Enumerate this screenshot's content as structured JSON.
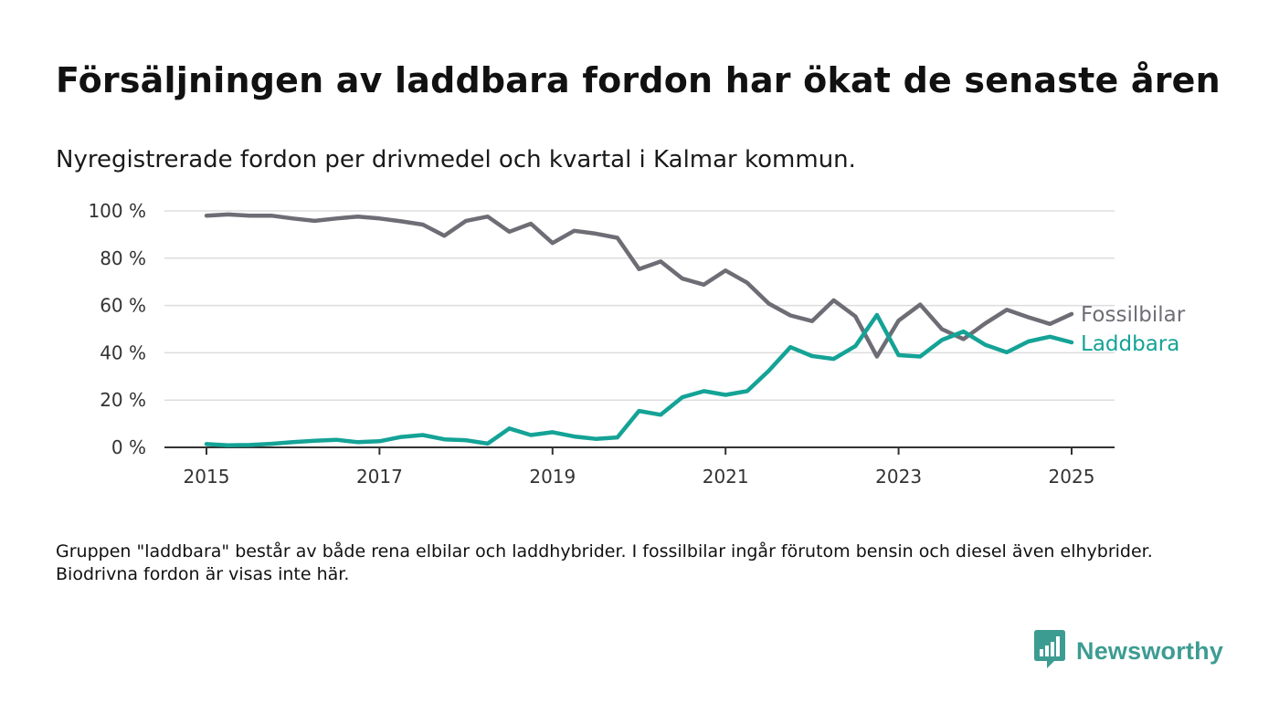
{
  "header": {
    "title": "Försäljningen av laddbara fordon har ökat de senaste åren",
    "subtitle": "Nyregistrerade fordon per drivmedel och kvartal i Kalmar kommun."
  },
  "note": "Gruppen \"laddbara\" består av både rena elbilar och laddhybrider. I fossilbilar ingår förutom bensin och diesel även elhybrider. Biodrivna fordon är visas inte här.",
  "brand": {
    "name": "Newsworthy",
    "icon": "newsworthy-chat-bar-icon",
    "color": "#3d9c92"
  },
  "colors": {
    "fossil": "#6e6d75",
    "laddbara": "#14a396",
    "grid": "#dddddd",
    "axis": "#333333"
  },
  "chart_data": {
    "type": "line",
    "title": "Försäljningen av laddbara fordon har ökat de senaste åren",
    "subtitle": "Nyregistrerade fordon per drivmedel och kvartal i Kalmar kommun.",
    "xlabel": "",
    "ylabel": "",
    "x": [
      "2015-Q1",
      "2015-Q2",
      "2015-Q3",
      "2015-Q4",
      "2016-Q1",
      "2016-Q2",
      "2016-Q3",
      "2016-Q4",
      "2017-Q1",
      "2017-Q2",
      "2017-Q3",
      "2017-Q4",
      "2018-Q1",
      "2018-Q2",
      "2018-Q3",
      "2018-Q4",
      "2019-Q1",
      "2019-Q2",
      "2019-Q3",
      "2019-Q4",
      "2020-Q1",
      "2020-Q2",
      "2020-Q3",
      "2020-Q4",
      "2021-Q1",
      "2021-Q2",
      "2021-Q3",
      "2021-Q4",
      "2022-Q1",
      "2022-Q2",
      "2022-Q3",
      "2022-Q4",
      "2023-Q1",
      "2023-Q2",
      "2023-Q3",
      "2023-Q4",
      "2024-Q1",
      "2024-Q2",
      "2024-Q3",
      "2024-Q4",
      "2025-Q1"
    ],
    "x_ticks": [
      "2015",
      "2017",
      "2019",
      "2021",
      "2023",
      "2025"
    ],
    "y_ticks": [
      0,
      20,
      40,
      60,
      80,
      100
    ],
    "y_tick_labels": [
      "0 %",
      "20 %",
      "40 %",
      "60 %",
      "80 %",
      "100 %"
    ],
    "ylim": [
      0,
      100
    ],
    "grid": true,
    "legend": "inline-right",
    "series": [
      {
        "name": "Fossilbilar",
        "color": "#6e6d75",
        "values": [
          98,
          98.5,
          98,
          98,
          96.8,
          95.8,
          96.8,
          97.6,
          96.8,
          95.6,
          94.2,
          89.5,
          95.8,
          97.6,
          91.2,
          94.6,
          86.4,
          91.6,
          90.4,
          88.6,
          75.4,
          78.6,
          71.4,
          68.8,
          74.8,
          69.6,
          60.8,
          55.8,
          53.4,
          62.2,
          55.4,
          38.4,
          53.6,
          60.4,
          50,
          45.8,
          52.4,
          58.2,
          55,
          52.2,
          56.4
        ]
      },
      {
        "name": "Laddbara",
        "color": "#14a396",
        "values": [
          1.4,
          0.9,
          1,
          1.5,
          2.2,
          2.8,
          3.2,
          2.2,
          2.6,
          4.4,
          5.2,
          3.4,
          3,
          1.6,
          8,
          5.2,
          6.4,
          4.6,
          3.6,
          4.2,
          15.4,
          13.8,
          21.2,
          23.8,
          22.2,
          23.8,
          32.4,
          42.4,
          38.6,
          37.4,
          42.8,
          56,
          39,
          38.4,
          45.4,
          49,
          43.4,
          40.2,
          44.8,
          46.8,
          44.4
        ]
      }
    ]
  }
}
